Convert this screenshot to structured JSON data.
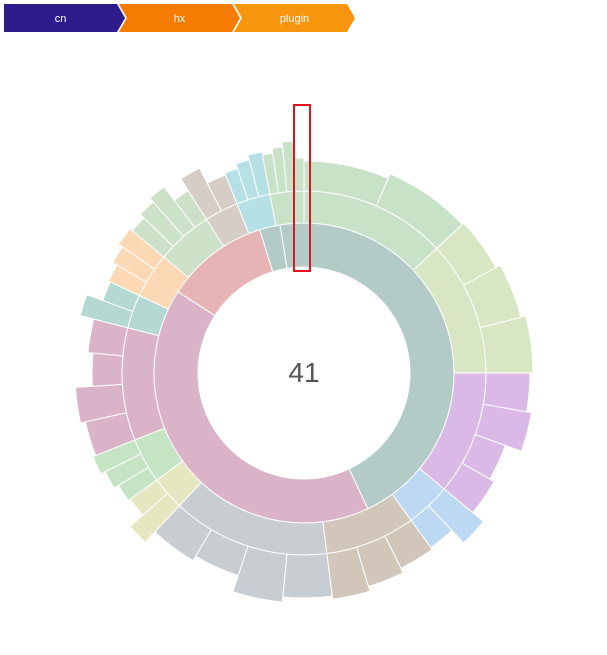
{
  "breadcrumb": [
    {
      "label": "cn",
      "color": "#2e1b8c"
    },
    {
      "label": "hx",
      "color": "#f57c00"
    },
    {
      "label": "plugin",
      "color": "#f7950f"
    }
  ],
  "center_label": "41",
  "highlight_color": "#e0141e",
  "chart_data": {
    "type": "sunburst",
    "title": "",
    "center_value": "41",
    "inner_ring": [
      {
        "share": 0.02,
        "color": "#b2cbc7"
      },
      {
        "share": 0.41,
        "color": "#b2cbc7"
      },
      {
        "share": 0.37,
        "color": "#dab3c8"
      },
      {
        "share": 0.1,
        "color": "#e6b4b4"
      }
    ],
    "segments_ring2": [
      {
        "share": 0.13,
        "color": "#c8e2c8"
      },
      {
        "share": 0.12,
        "color": "#d8e6c4"
      },
      {
        "share": 0.11,
        "color": "#dab9e6"
      },
      {
        "share": 0.04,
        "color": "#bcd8f2"
      },
      {
        "share": 0.08,
        "color": "#d2c6ba"
      },
      {
        "share": 0.14,
        "color": "#c8cdd2"
      },
      {
        "share": 0.03,
        "color": "#e6e6c0"
      },
      {
        "share": 0.04,
        "color": "#c4e4c4"
      },
      {
        "share": 0.1,
        "color": "#dab3c8"
      },
      {
        "share": 0.03,
        "color": "#b4d8d2"
      },
      {
        "share": 0.04,
        "color": "#fcd8b4"
      },
      {
        "share": 0.05,
        "color": "#cde0c8"
      },
      {
        "share": 0.03,
        "color": "#d6cec6"
      },
      {
        "share": 0.03,
        "color": "#b4e0e6"
      },
      {
        "share": 0.03,
        "color": "#c8e2c8"
      }
    ]
  }
}
